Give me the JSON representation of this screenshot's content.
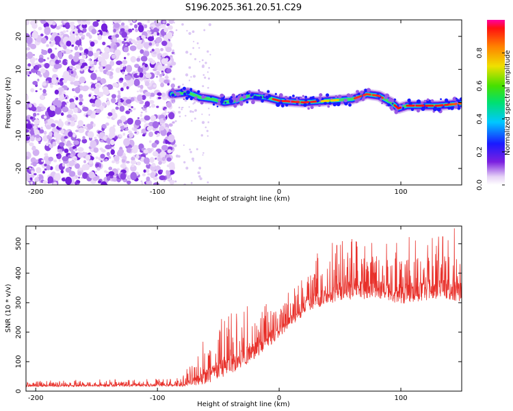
{
  "title": "S196.2025.361.20.51.C29",
  "chart_data": [
    {
      "type": "heatmap",
      "xlabel": "Height of straight line (km)",
      "ylabel": "Frequency (Hz)",
      "xlim": [
        -208,
        150
      ],
      "ylim": [
        -25,
        25
      ],
      "xticks": [
        -200,
        -100,
        0,
        100
      ],
      "yticks": [
        -20,
        -10,
        0,
        10,
        20
      ],
      "noise_region_x": [
        -208,
        -80
      ],
      "ridge": [
        {
          "x": -88,
          "y": 2.5
        },
        {
          "x": -75,
          "y": 3.0
        },
        {
          "x": -65,
          "y": 1.5
        },
        {
          "x": -55,
          "y": 1.0
        },
        {
          "x": -45,
          "y": 0.0
        },
        {
          "x": -35,
          "y": 0.5
        },
        {
          "x": -25,
          "y": 2.0
        },
        {
          "x": -10,
          "y": 1.5
        },
        {
          "x": 0,
          "y": 0.5
        },
        {
          "x": 20,
          "y": 0.0
        },
        {
          "x": 40,
          "y": 0.5
        },
        {
          "x": 60,
          "y": 1.0
        },
        {
          "x": 72,
          "y": 2.5
        },
        {
          "x": 82,
          "y": 2.0
        },
        {
          "x": 92,
          "y": 0.0
        },
        {
          "x": 98,
          "y": -1.8
        },
        {
          "x": 105,
          "y": -1.0
        },
        {
          "x": 130,
          "y": -1.0
        },
        {
          "x": 150,
          "y": -0.3
        }
      ],
      "colorbar": {
        "label": "Normalized spectral amplitude",
        "ticks": [
          0.0,
          0.2,
          0.4,
          0.6,
          0.8
        ],
        "tick_labels": [
          "0.0",
          "0.2",
          "0.4",
          "0.6",
          "0.8"
        ],
        "range": [
          0,
          1
        ]
      }
    },
    {
      "type": "line",
      "xlabel": "Height of straight line (km)",
      "ylabel": "SNR (10 * v/v)",
      "xlim": [
        -208,
        150
      ],
      "ylim": [
        0,
        560
      ],
      "xticks": [
        -200,
        -100,
        0,
        100
      ],
      "yticks": [
        0,
        100,
        200,
        300,
        400,
        500
      ],
      "color": "#e8302a",
      "envelope": [
        {
          "x": -208,
          "base": 18,
          "peak": 35
        },
        {
          "x": -80,
          "base": 20,
          "peak": 45
        },
        {
          "x": -65,
          "base": 40,
          "peak": 160
        },
        {
          "x": -50,
          "base": 70,
          "peak": 250
        },
        {
          "x": -30,
          "base": 110,
          "peak": 300
        },
        {
          "x": -10,
          "base": 170,
          "peak": 320
        },
        {
          "x": 10,
          "base": 240,
          "peak": 340
        },
        {
          "x": 25,
          "base": 300,
          "peak": 460
        },
        {
          "x": 50,
          "base": 340,
          "peak": 520
        },
        {
          "x": 80,
          "base": 345,
          "peak": 520
        },
        {
          "x": 100,
          "base": 330,
          "peak": 530
        },
        {
          "x": 130,
          "base": 350,
          "peak": 555
        },
        {
          "x": 150,
          "base": 340,
          "peak": 560
        }
      ]
    }
  ]
}
